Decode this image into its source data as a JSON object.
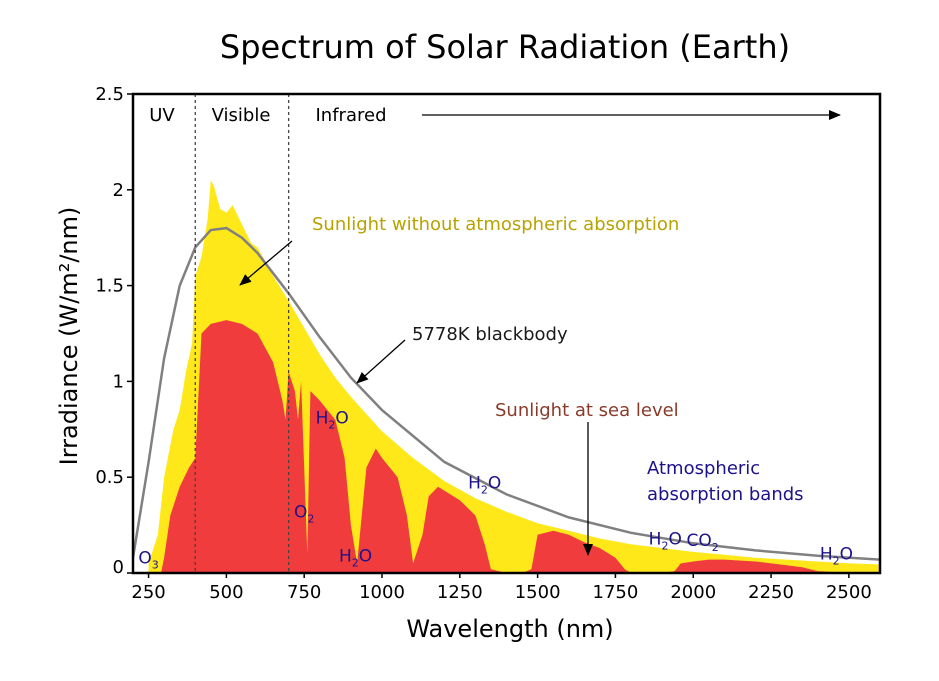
{
  "chart_data": {
    "type": "area",
    "title": "Spectrum of Solar Radiation (Earth)",
    "xlabel": "Wavelength (nm)",
    "ylabel": "Irradiance (W/m²/nm)",
    "xlim": [
      200,
      2600
    ],
    "ylim": [
      0,
      2.5
    ],
    "xticks": [
      250,
      500,
      750,
      1000,
      1250,
      1500,
      1750,
      2000,
      2250,
      2500
    ],
    "yticks": [
      "0",
      "0.5",
      "1",
      "1.5",
      "2",
      "2.5"
    ],
    "grid": false,
    "regions": [
      {
        "label": "UV",
        "x_start": 200,
        "x_end": 400
      },
      {
        "label": "Visible",
        "x_start": 400,
        "x_end": 700
      },
      {
        "label": "Infrared",
        "x_start": 700,
        "x_end": 2600
      }
    ],
    "series": [
      {
        "name": "Sunlight without atmospheric absorption",
        "color": "#ffe81a",
        "x": [
          250,
          280,
          300,
          330,
          350,
          370,
          390,
          400,
          420,
          440,
          450,
          460,
          480,
          500,
          520,
          550,
          580,
          600,
          650,
          700,
          750,
          800,
          850,
          900,
          950,
          1000,
          1100,
          1200,
          1300,
          1400,
          1500,
          1600,
          1700,
          1800,
          1900,
          2000,
          2100,
          2200,
          2300,
          2400,
          2500,
          2600
        ],
        "y": [
          0.05,
          0.2,
          0.5,
          0.75,
          0.85,
          1.05,
          1.2,
          1.55,
          1.65,
          1.85,
          2.05,
          2.02,
          1.9,
          1.88,
          1.92,
          1.82,
          1.72,
          1.7,
          1.55,
          1.42,
          1.28,
          1.14,
          1.02,
          0.92,
          0.83,
          0.74,
          0.6,
          0.48,
          0.39,
          0.32,
          0.26,
          0.22,
          0.18,
          0.15,
          0.13,
          0.11,
          0.095,
          0.08,
          0.07,
          0.06,
          0.05,
          0.045
        ]
      },
      {
        "name": "5778K blackbody",
        "color": "#808080",
        "x": [
          200,
          250,
          300,
          350,
          400,
          450,
          500,
          550,
          600,
          700,
          800,
          900,
          1000,
          1200,
          1400,
          1600,
          1800,
          2000,
          2200,
          2400,
          2600
        ],
        "y": [
          0.08,
          0.58,
          1.12,
          1.5,
          1.7,
          1.79,
          1.8,
          1.75,
          1.67,
          1.46,
          1.23,
          1.02,
          0.85,
          0.58,
          0.41,
          0.29,
          0.21,
          0.155,
          0.118,
          0.09,
          0.07
        ]
      },
      {
        "name": "Sunlight at sea level",
        "color": "#f03c3c",
        "x": [
          290,
          300,
          320,
          350,
          380,
          400,
          420,
          450,
          500,
          550,
          600,
          650,
          680,
          690,
          700,
          720,
          730,
          740,
          760,
          770,
          800,
          850,
          880,
          900,
          920,
          950,
          980,
          1000,
          1050,
          1080,
          1100,
          1130,
          1150,
          1180,
          1200,
          1250,
          1300,
          1330,
          1350,
          1400,
          1450,
          1480,
          1500,
          1550,
          1600,
          1650,
          1700,
          1750,
          1780,
          1800,
          1850,
          1900,
          1940,
          1960,
          2000,
          2050,
          2100,
          2200,
          2300,
          2350,
          2400,
          2450,
          2500,
          2600
        ],
        "y": [
          0.0,
          0.08,
          0.3,
          0.45,
          0.55,
          0.6,
          1.25,
          1.3,
          1.32,
          1.3,
          1.25,
          1.1,
          0.9,
          0.8,
          1.05,
          0.95,
          0.8,
          1.0,
          0.1,
          0.95,
          0.9,
          0.8,
          0.6,
          0.25,
          0.05,
          0.55,
          0.65,
          0.6,
          0.5,
          0.3,
          0.05,
          0.2,
          0.4,
          0.45,
          0.43,
          0.38,
          0.3,
          0.15,
          0.02,
          0.0,
          0.0,
          0.02,
          0.2,
          0.22,
          0.2,
          0.16,
          0.13,
          0.08,
          0.02,
          0.0,
          0.0,
          0.0,
          0.01,
          0.05,
          0.06,
          0.07,
          0.07,
          0.06,
          0.04,
          0.03,
          0.01,
          0.005,
          0.0,
          0.0
        ]
      }
    ],
    "annotations": [
      {
        "text": "Sunlight without atmospheric absorption",
        "color": "#b7a200"
      },
      {
        "text": "5778K blackbody",
        "color": "#1a1a1a"
      },
      {
        "text": "Sunlight at sea level",
        "color": "#8a3a2a"
      },
      {
        "text": "Atmospheric",
        "color": "#1c128c"
      },
      {
        "text": "absorption bands",
        "color": "#1c128c"
      }
    ],
    "absorption_labels": [
      {
        "main": "O",
        "sub": "3",
        "x": 250,
        "y": 0.05
      },
      {
        "main": "O",
        "sub": "2",
        "x": 750,
        "y": 0.29
      },
      {
        "main": "H",
        "sub": "2",
        "after": "O",
        "x": 915,
        "y": 0.06
      },
      {
        "main": "H",
        "sub": "2",
        "after": "O",
        "x": 1330,
        "y": 0.44
      },
      {
        "main": "H",
        "sub": "2",
        "after": "O",
        "x": 1910,
        "y": 0.15
      },
      {
        "main": "CO",
        "sub": "2",
        "x": 2030,
        "y": 0.14
      },
      {
        "main": "H",
        "sub": "2",
        "after": "O",
        "x": 2460,
        "y": 0.07
      },
      {
        "main": "H",
        "sub": "2",
        "after": "O",
        "x": 840,
        "y": 0.78
      }
    ]
  }
}
